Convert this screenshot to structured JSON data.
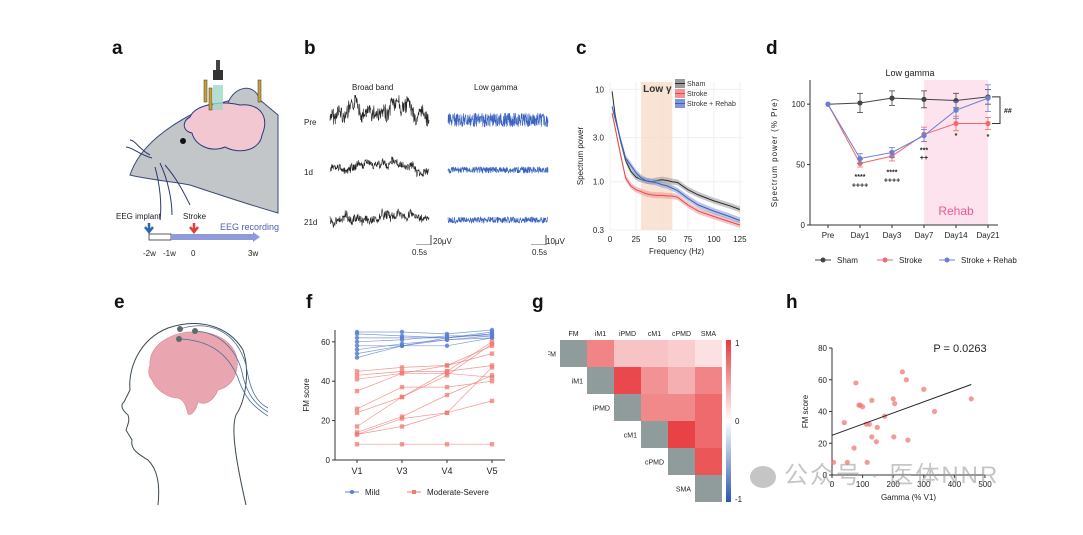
{
  "panels": {
    "a": {
      "letter": "a",
      "timeline": {
        "implant_label": "EEG implant",
        "stroke_label": "Stroke",
        "recording_label": "EEG recording",
        "ticks": [
          "-2w",
          "-1w",
          "0",
          "3w"
        ]
      }
    },
    "b": {
      "letter": "b",
      "col_headers": [
        "Broad band",
        "Low gamma"
      ],
      "row_labels": [
        "Pre",
        "1d",
        "21d"
      ],
      "scale_broad": {
        "amp": "20μV",
        "time": "0.5s"
      },
      "scale_gamma": {
        "amp": "10μV",
        "time": "0.5s"
      },
      "colors": {
        "broad": "#222222",
        "gamma": "#3a63c0"
      }
    },
    "c": {
      "letter": "c"
    },
    "d": {
      "letter": "d"
    },
    "e": {
      "letter": "e"
    },
    "f": {
      "letter": "f"
    },
    "g": {
      "letter": "g"
    },
    "h": {
      "letter": "h"
    }
  },
  "watermark": "公众号 · 医体NNR",
  "chart_data": [
    {
      "id": "c",
      "type": "line",
      "title": "",
      "xlabel": "Frequency (Hz)",
      "ylabel": "Spectrum power",
      "xlim": [
        0,
        128
      ],
      "ylim_log": [
        0.3,
        12
      ],
      "xticks": [
        0,
        25,
        50,
        75,
        100,
        125
      ],
      "yticks": [
        0.3,
        1.0,
        3.0,
        10
      ],
      "ytick_labels": [
        "0.3",
        "1.0",
        "3.0",
        "10"
      ],
      "band": {
        "label": "Low γ",
        "range": [
          30,
          60
        ],
        "color": "#f6dccb"
      },
      "legend_position": "top-right",
      "x": [
        2,
        5,
        10,
        15,
        20,
        25,
        30,
        35,
        40,
        45,
        50,
        55,
        60,
        65,
        75,
        85,
        100,
        115,
        125
      ],
      "series": [
        {
          "name": "Sham",
          "color": "#2b2b2b",
          "band_color": "#9a9a9a",
          "values": [
            9.5,
            5.2,
            2.8,
            1.7,
            1.3,
            1.12,
            1.05,
            1.02,
            1.0,
            1.03,
            1.05,
            1.03,
            1.0,
            0.98,
            0.82,
            0.72,
            0.62,
            0.55,
            0.5
          ]
        },
        {
          "name": "Stroke",
          "color": "#e8484a",
          "band_color": "#f09495",
          "values": [
            5.5,
            3.8,
            2.0,
            1.1,
            0.9,
            0.82,
            0.78,
            0.74,
            0.72,
            0.71,
            0.71,
            0.7,
            0.7,
            0.68,
            0.56,
            0.48,
            0.42,
            0.37,
            0.34
          ]
        },
        {
          "name": "Stroke + Rehab",
          "color": "#3a5fb8",
          "band_color": "#7f97d6",
          "values": [
            6.5,
            4.8,
            2.9,
            1.8,
            1.5,
            1.25,
            1.1,
            1.02,
            1.0,
            0.97,
            0.93,
            0.9,
            0.85,
            0.8,
            0.66,
            0.56,
            0.48,
            0.42,
            0.38
          ]
        }
      ]
    },
    {
      "id": "d",
      "type": "line",
      "title": "Low gamma",
      "xlabel": "",
      "ylabel": "Spectrum power (% Pre)",
      "categories": [
        "Pre",
        "Day1",
        "Day3",
        "Day7",
        "Day14",
        "Day21"
      ],
      "ylim": [
        0,
        120
      ],
      "yticks": [
        0,
        50,
        100
      ],
      "shaded_region": {
        "label": "Rehab",
        "from": "Day7",
        "to": "Day21",
        "color": "#fde3ee",
        "label_color": "#e8589a"
      },
      "legend_position": "bottom",
      "series": [
        {
          "name": "Sham",
          "color": "#444444",
          "values": [
            100,
            101,
            105,
            104,
            103,
            106
          ],
          "errors": [
            0,
            8,
            6,
            7,
            6,
            6
          ]
        },
        {
          "name": "Stroke",
          "color": "#ee6b6b",
          "values": [
            100,
            51,
            57,
            75,
            84,
            84
          ],
          "errors": [
            0,
            3,
            4,
            6,
            6,
            5
          ]
        },
        {
          "name": "Stroke + Rehab",
          "color": "#6b7fd1",
          "values": [
            100,
            55,
            60,
            74,
            95,
            105
          ],
          "errors": [
            0,
            4,
            4,
            5,
            7,
            11
          ]
        }
      ],
      "annotations": [
        {
          "category": "Day1",
          "text": "****",
          "value": 38
        },
        {
          "category": "Day1",
          "text": "++++",
          "value": 31
        },
        {
          "category": "Day3",
          "text": "****",
          "value": 42
        },
        {
          "category": "Day3",
          "text": "++++",
          "value": 35
        },
        {
          "category": "Day7",
          "text": "***",
          "value": 60
        },
        {
          "category": "Day7",
          "text": "++",
          "value": 54
        },
        {
          "category": "Day14",
          "text": "*",
          "value": 72
        },
        {
          "category": "Day21",
          "text": "*",
          "value": 71
        }
      ],
      "bracket_label": "##"
    },
    {
      "id": "f",
      "type": "line",
      "title": "",
      "xlabel": "",
      "ylabel": "FM score",
      "categories": [
        "V1",
        "V3",
        "V4",
        "V5"
      ],
      "ylim": [
        0,
        66
      ],
      "yticks": [
        0,
        20,
        40,
        60
      ],
      "legend_position": "bottom",
      "series_groups": [
        {
          "name": "Mild",
          "color": "#5b7fcf",
          "marker": "circle",
          "lines": [
            [
              65,
              65,
              64,
              66
            ],
            [
              64,
              63,
              62,
              65
            ],
            [
              62,
              62,
              62,
              64
            ],
            [
              60,
              61,
              63,
              63
            ],
            [
              58,
              58,
              58,
              62
            ],
            [
              56,
              59,
              61,
              63
            ],
            [
              54,
              58,
              61,
              62
            ],
            [
              52,
              58,
              62,
              64
            ]
          ]
        },
        {
          "name": "Moderate-Severe",
          "color": "#f07a72",
          "marker": "square",
          "lines": [
            [
              45,
              47,
              48,
              58
            ],
            [
              43,
              45,
              45,
              60
            ],
            [
              41,
              44,
              48,
              54
            ],
            [
              35,
              44,
              44,
              42
            ],
            [
              26,
              37,
              37,
              40
            ],
            [
              24,
              32,
              45,
              48
            ],
            [
              17,
              32,
              43,
              59
            ],
            [
              14,
              22,
              33,
              43
            ],
            [
              13,
              21,
              24,
              30
            ],
            [
              13,
              17,
              24,
              47
            ],
            [
              8,
              8,
              8,
              8
            ]
          ]
        }
      ]
    },
    {
      "id": "g",
      "type": "heatmap",
      "title": "",
      "labels": [
        "FM",
        "iM1",
        "iPMD",
        "cM1",
        "cPMD",
        "SMA"
      ],
      "colorbar": {
        "min": -1,
        "max": 1,
        "ticks": [
          "1",
          "0",
          "-1"
        ],
        "pos_color": "#e8383c",
        "neg_color": "#2a56b0",
        "mid_color": "#ffffff"
      },
      "diagonal_color": "#8f9c9b",
      "matrix_upper": [
        [
          null,
          0.62,
          0.3,
          0.3,
          0.25,
          0.15
        ],
        [
          null,
          null,
          0.92,
          0.55,
          0.4,
          0.62
        ],
        [
          null,
          null,
          null,
          0.6,
          0.6,
          0.75
        ],
        [
          null,
          null,
          null,
          null,
          0.95,
          0.75
        ],
        [
          null,
          null,
          null,
          null,
          null,
          0.85
        ],
        [
          null,
          null,
          null,
          null,
          null,
          null
        ]
      ]
    },
    {
      "id": "h",
      "type": "scatter",
      "title": "",
      "xlabel": "Gamma (% V1)",
      "ylabel": "FM score",
      "xlim": [
        0,
        500
      ],
      "ylim": [
        0,
        80
      ],
      "xticks": [
        0,
        100,
        200,
        300,
        400,
        500
      ],
      "yticks": [
        0,
        20,
        40,
        60,
        80
      ],
      "annotation": "P = 0.0263",
      "color": "#f07a72",
      "points": [
        [
          5,
          8
        ],
        [
          50,
          8
        ],
        [
          115,
          8
        ],
        [
          40,
          33
        ],
        [
          72,
          17
        ],
        [
          78,
          58
        ],
        [
          88,
          44
        ],
        [
          92,
          44
        ],
        [
          100,
          43
        ],
        [
          112,
          32
        ],
        [
          122,
          32
        ],
        [
          130,
          47
        ],
        [
          130,
          24
        ],
        [
          145,
          21
        ],
        [
          148,
          30
        ],
        [
          172,
          37
        ],
        [
          200,
          48
        ],
        [
          202,
          24
        ],
        [
          205,
          45
        ],
        [
          230,
          65
        ],
        [
          243,
          60
        ],
        [
          248,
          22
        ],
        [
          300,
          54
        ],
        [
          335,
          40
        ],
        [
          455,
          48
        ]
      ],
      "fit_line": {
        "x": [
          0,
          455
        ],
        "y": [
          25,
          57
        ]
      }
    }
  ]
}
